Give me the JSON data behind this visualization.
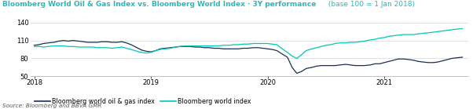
{
  "title_main": "Bloomberg World Oil & Gas Index vs. Bloomberg World Index · 3Y performance",
  "title_sub": "(base 100 = 1 Jan 2018)",
  "source_text": "Source: Bloomberg and BBVA GMR",
  "title_color_main": "#2ab8b8",
  "title_color_sub": "#2ab8b8",
  "color_oil": "#1a2e5a",
  "color_world": "#00c8b4",
  "ylim": [
    50,
    145
  ],
  "yticks": [
    50,
    80,
    110,
    140
  ],
  "legend_label_oil": "Bloomberg world oil & gas index",
  "legend_label_world": "Bloomberg world index",
  "background_color": "#ffffff",
  "oil_data": [
    [
      2018.0,
      102
    ],
    [
      2018.04,
      103
    ],
    [
      2018.08,
      105
    ],
    [
      2018.12,
      106
    ],
    [
      2018.17,
      107
    ],
    [
      2018.21,
      109
    ],
    [
      2018.25,
      110
    ],
    [
      2018.29,
      109
    ],
    [
      2018.33,
      110
    ],
    [
      2018.38,
      109
    ],
    [
      2018.42,
      108
    ],
    [
      2018.46,
      107
    ],
    [
      2018.5,
      107
    ],
    [
      2018.54,
      107
    ],
    [
      2018.58,
      108
    ],
    [
      2018.62,
      108
    ],
    [
      2018.67,
      107
    ],
    [
      2018.71,
      107
    ],
    [
      2018.75,
      108
    ],
    [
      2018.79,
      106
    ],
    [
      2018.83,
      103
    ],
    [
      2018.88,
      98
    ],
    [
      2018.92,
      94
    ],
    [
      2018.96,
      92
    ],
    [
      2019.0,
      91
    ],
    [
      2019.04,
      93
    ],
    [
      2019.08,
      96
    ],
    [
      2019.12,
      97
    ],
    [
      2019.17,
      98
    ],
    [
      2019.21,
      99
    ],
    [
      2019.25,
      100
    ],
    [
      2019.29,
      100
    ],
    [
      2019.33,
      100
    ],
    [
      2019.38,
      99
    ],
    [
      2019.42,
      99
    ],
    [
      2019.46,
      98
    ],
    [
      2019.5,
      98
    ],
    [
      2019.54,
      97
    ],
    [
      2019.58,
      97
    ],
    [
      2019.62,
      96
    ],
    [
      2019.67,
      96
    ],
    [
      2019.71,
      96
    ],
    [
      2019.75,
      96
    ],
    [
      2019.79,
      97
    ],
    [
      2019.83,
      97
    ],
    [
      2019.88,
      98
    ],
    [
      2019.92,
      98
    ],
    [
      2019.96,
      97
    ],
    [
      2020.0,
      96
    ],
    [
      2020.04,
      95
    ],
    [
      2020.08,
      93
    ],
    [
      2020.12,
      88
    ],
    [
      2020.17,
      82
    ],
    [
      2020.21,
      65
    ],
    [
      2020.25,
      55
    ],
    [
      2020.29,
      58
    ],
    [
      2020.33,
      63
    ],
    [
      2020.38,
      65
    ],
    [
      2020.42,
      67
    ],
    [
      2020.46,
      68
    ],
    [
      2020.5,
      68
    ],
    [
      2020.54,
      68
    ],
    [
      2020.58,
      68
    ],
    [
      2020.62,
      69
    ],
    [
      2020.67,
      70
    ],
    [
      2020.71,
      69
    ],
    [
      2020.75,
      68
    ],
    [
      2020.79,
      68
    ],
    [
      2020.83,
      68
    ],
    [
      2020.88,
      69
    ],
    [
      2020.92,
      71
    ],
    [
      2020.96,
      71
    ],
    [
      2021.0,
      73
    ],
    [
      2021.04,
      75
    ],
    [
      2021.08,
      77
    ],
    [
      2021.12,
      79
    ],
    [
      2021.17,
      79
    ],
    [
      2021.21,
      78
    ],
    [
      2021.25,
      77
    ],
    [
      2021.29,
      75
    ],
    [
      2021.33,
      74
    ],
    [
      2021.38,
      73
    ],
    [
      2021.42,
      73
    ],
    [
      2021.46,
      74
    ],
    [
      2021.5,
      76
    ],
    [
      2021.54,
      78
    ],
    [
      2021.58,
      80
    ],
    [
      2021.62,
      81
    ],
    [
      2021.67,
      82
    ]
  ],
  "world_data": [
    [
      2018.0,
      100
    ],
    [
      2018.04,
      100
    ],
    [
      2018.08,
      99
    ],
    [
      2018.12,
      100
    ],
    [
      2018.17,
      101
    ],
    [
      2018.21,
      101
    ],
    [
      2018.25,
      101
    ],
    [
      2018.29,
      100
    ],
    [
      2018.33,
      100
    ],
    [
      2018.38,
      99
    ],
    [
      2018.42,
      99
    ],
    [
      2018.46,
      99
    ],
    [
      2018.5,
      99
    ],
    [
      2018.54,
      98
    ],
    [
      2018.58,
      98
    ],
    [
      2018.62,
      98
    ],
    [
      2018.67,
      97
    ],
    [
      2018.71,
      98
    ],
    [
      2018.75,
      99
    ],
    [
      2018.79,
      97
    ],
    [
      2018.83,
      95
    ],
    [
      2018.88,
      92
    ],
    [
      2018.92,
      90
    ],
    [
      2018.96,
      89
    ],
    [
      2019.0,
      90
    ],
    [
      2019.04,
      93
    ],
    [
      2019.08,
      95
    ],
    [
      2019.12,
      96
    ],
    [
      2019.17,
      97
    ],
    [
      2019.21,
      99
    ],
    [
      2019.25,
      100
    ],
    [
      2019.29,
      101
    ],
    [
      2019.33,
      101
    ],
    [
      2019.38,
      101
    ],
    [
      2019.42,
      101
    ],
    [
      2019.46,
      101
    ],
    [
      2019.5,
      101
    ],
    [
      2019.54,
      101
    ],
    [
      2019.58,
      101
    ],
    [
      2019.62,
      102
    ],
    [
      2019.67,
      102
    ],
    [
      2019.71,
      103
    ],
    [
      2019.75,
      103
    ],
    [
      2019.79,
      104
    ],
    [
      2019.83,
      104
    ],
    [
      2019.88,
      105
    ],
    [
      2019.92,
      105
    ],
    [
      2019.96,
      105
    ],
    [
      2020.0,
      105
    ],
    [
      2020.04,
      104
    ],
    [
      2020.08,
      103
    ],
    [
      2020.12,
      97
    ],
    [
      2020.17,
      90
    ],
    [
      2020.21,
      84
    ],
    [
      2020.25,
      80
    ],
    [
      2020.29,
      86
    ],
    [
      2020.33,
      93
    ],
    [
      2020.38,
      96
    ],
    [
      2020.42,
      98
    ],
    [
      2020.46,
      100
    ],
    [
      2020.5,
      102
    ],
    [
      2020.54,
      103
    ],
    [
      2020.58,
      105
    ],
    [
      2020.62,
      106
    ],
    [
      2020.67,
      106
    ],
    [
      2020.71,
      107
    ],
    [
      2020.75,
      107
    ],
    [
      2020.79,
      108
    ],
    [
      2020.83,
      109
    ],
    [
      2020.88,
      111
    ],
    [
      2020.92,
      112
    ],
    [
      2020.96,
      114
    ],
    [
      2021.0,
      115
    ],
    [
      2021.04,
      117
    ],
    [
      2021.08,
      118
    ],
    [
      2021.12,
      119
    ],
    [
      2021.17,
      120
    ],
    [
      2021.21,
      120
    ],
    [
      2021.25,
      120
    ],
    [
      2021.29,
      121
    ],
    [
      2021.33,
      122
    ],
    [
      2021.38,
      123
    ],
    [
      2021.42,
      124
    ],
    [
      2021.46,
      125
    ],
    [
      2021.5,
      126
    ],
    [
      2021.54,
      127
    ],
    [
      2021.58,
      128
    ],
    [
      2021.62,
      129
    ],
    [
      2021.67,
      130
    ]
  ]
}
